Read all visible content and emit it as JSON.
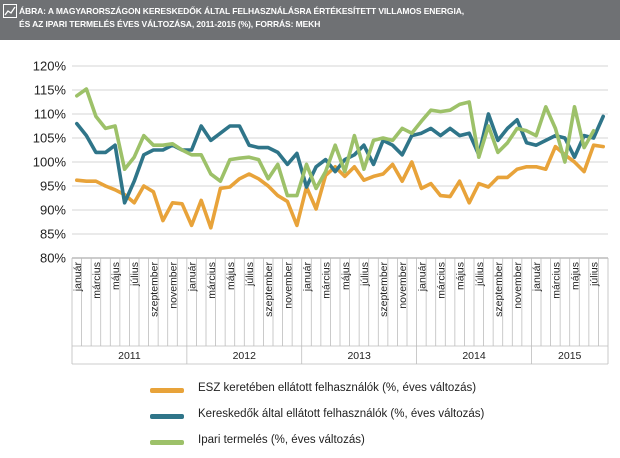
{
  "header": {
    "title_line1": "ÁBRA: A MAGYARORSZÁGON KERESKEDŐK ÁLTAL FELHASZNÁLÁSRA ÉRTÉKESÍTETT VILLAMOS ENERGIA,",
    "title_line2": "ÉS AZ IPARI TERMELÉS ÉVES VÁLTOZÁSA, 2011-2015 (%), FORRÁS: MEKH",
    "icon": "chart-icon"
  },
  "colors": {
    "header_bg": "#6f7174",
    "esz": "#e8a33a",
    "keresk": "#2f7589",
    "ipari": "#9dc169",
    "grid": "#d6d6d6"
  },
  "chart_data": {
    "type": "line",
    "title": "ÁBRA: A MAGYARORSZÁGON KERESKEDŐK ÁLTAL FELHASZNÁLÁSRA ÉRTÉKESÍTETT VILLAMOS ENERGIA, ÉS AZ IPARI TERMELÉS ÉVES VÁLTOZÁSA, 2011-2015 (%), FORRÁS: MEKH",
    "ylim": [
      80,
      120
    ],
    "yticks": [
      80,
      85,
      90,
      95,
      100,
      105,
      110,
      115,
      120
    ],
    "ytick_labels": [
      "80%",
      "85%",
      "90%",
      "95%",
      "100%",
      "105%",
      "110%",
      "115%",
      "120%"
    ],
    "grid": "horizontal",
    "month_labels": [
      "január",
      "március",
      "május",
      "július",
      "szeptember",
      "november"
    ],
    "years": [
      "2011",
      "2012",
      "2013",
      "2014",
      "2015"
    ],
    "months_per_year": [
      12,
      12,
      12,
      12,
      8
    ],
    "legend_position": "bottom",
    "series": [
      {
        "name": "ESZ keretében ellátott felhasználók (%, éves változás)",
        "values": [
          96.2,
          96.0,
          96.0,
          95.0,
          94.2,
          93.2,
          91.5,
          95.0,
          93.8,
          87.8,
          91.5,
          91.3,
          86.8,
          92.0,
          86.3,
          94.5,
          94.8,
          96.5,
          97.5,
          96.5,
          95.0,
          93.0,
          91.8,
          86.8,
          94.8,
          90.2,
          97.2,
          99.0,
          97.0,
          99.0,
          96.2,
          97.0,
          97.5,
          99.5,
          96.0,
          100.0,
          94.5,
          95.5,
          93.0,
          92.8,
          96.0,
          91.5,
          95.5,
          94.8,
          96.8,
          96.8,
          98.5,
          99.0,
          99.0,
          98.5,
          103.2,
          101.5,
          100.0,
          98.0,
          103.5,
          103.2
        ]
      },
      {
        "name": "Kereskedők által ellátott felhasználók (%, éves változás)",
        "values": [
          108.0,
          105.5,
          102.0,
          102.0,
          103.5,
          91.5,
          96.0,
          101.5,
          102.5,
          102.5,
          103.5,
          102.5,
          102.5,
          107.5,
          104.5,
          106.0,
          107.5,
          107.5,
          103.5,
          103.0,
          103.0,
          102.0,
          99.5,
          101.8,
          94.8,
          99.0,
          100.5,
          98.0,
          100.5,
          101.5,
          103.5,
          99.5,
          104.5,
          103.5,
          101.5,
          105.5,
          106.0,
          107.0,
          105.5,
          107.0,
          105.5,
          106.0,
          101.5,
          110.0,
          104.5,
          107.0,
          108.8,
          104.0,
          103.5,
          104.5,
          105.5,
          105.0,
          101.0,
          105.5,
          105.0,
          109.5
        ]
      },
      {
        "name": "Ipari termelés (%, éves változás)",
        "values": [
          113.8,
          115.2,
          109.5,
          107.0,
          107.5,
          98.5,
          101.0,
          105.5,
          103.5,
          103.5,
          103.8,
          102.5,
          101.5,
          101.5,
          97.5,
          96.0,
          100.5,
          100.8,
          101.0,
          100.5,
          96.5,
          99.5,
          93.0,
          93.0,
          99.5,
          94.5,
          98.0,
          103.5,
          98.0,
          105.5,
          98.5,
          104.5,
          105.0,
          104.5,
          107.0,
          106.0,
          108.5,
          110.8,
          110.5,
          110.8,
          112.0,
          112.5,
          101.0,
          107.5,
          102.0,
          104.0,
          107.0,
          106.5,
          105.5,
          111.5,
          107.0,
          100.0,
          111.5,
          103.0,
          106.5
        ]
      }
    ]
  },
  "legend": [
    {
      "label": "ESZ keretében ellátott felhasználók (%, éves változás)"
    },
    {
      "label": "Kereskedők által ellátott felhasználók (%, éves változás)"
    },
    {
      "label": "Ipari termelés (%, éves változás)"
    }
  ]
}
